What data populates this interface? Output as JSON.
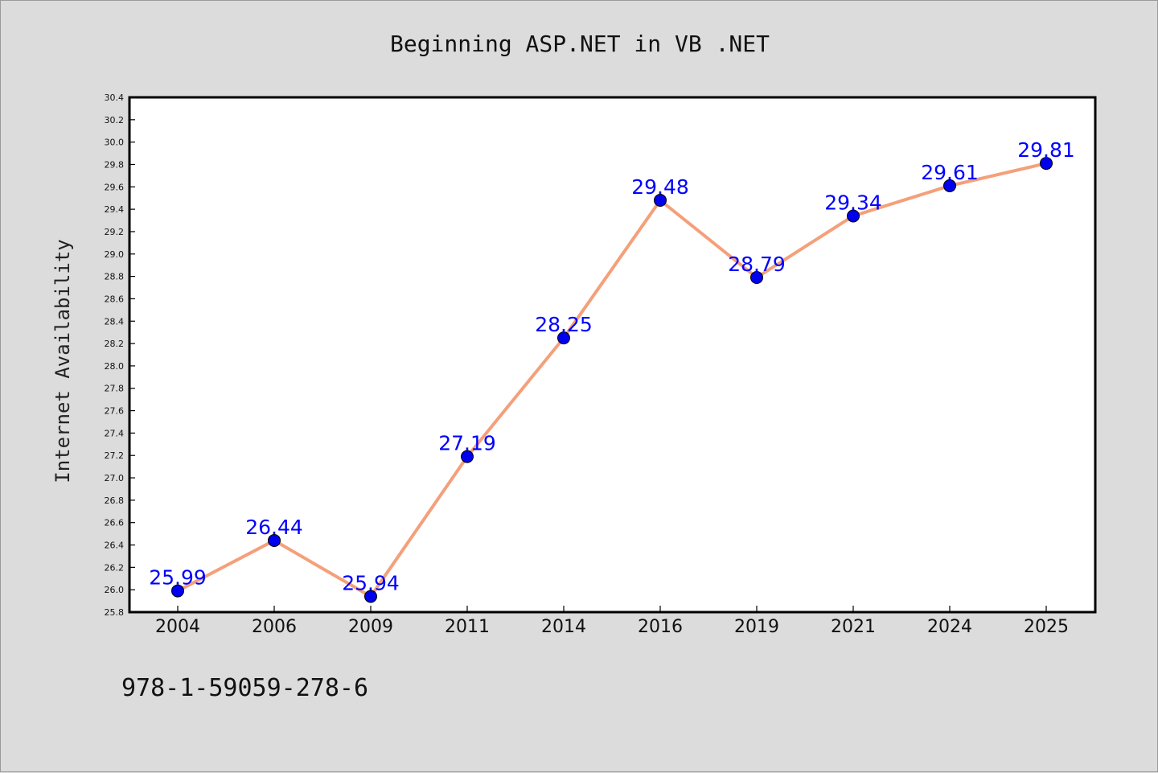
{
  "chart_data": {
    "type": "line",
    "title": "Beginning ASP.NET in VB .NET",
    "xlabel": "",
    "ylabel": "Internet Availability",
    "categories": [
      "2004",
      "2006",
      "2009",
      "2011",
      "2014",
      "2016",
      "2019",
      "2021",
      "2024",
      "2025"
    ],
    "series": [
      {
        "values": [
          25.99,
          26.44,
          25.94,
          27.19,
          28.25,
          29.48,
          28.79,
          29.34,
          29.61,
          29.81
        ],
        "labels": [
          "25.99",
          "26.44",
          "25.94",
          "27.19",
          "28.25",
          "29.48",
          "28.79",
          "29.34",
          "29.61",
          "29.81"
        ],
        "line_color": "#f4a07a",
        "marker_color": "#0000ee"
      }
    ],
    "ylim": [
      25.8,
      30.4
    ],
    "yticks": [
      "25.8",
      "26.0",
      "26.2",
      "26.4",
      "26.6",
      "26.8",
      "27.0",
      "27.2",
      "27.4",
      "27.6",
      "27.8",
      "28.0",
      "28.2",
      "28.4",
      "28.6",
      "28.8",
      "29.0",
      "29.2",
      "29.4",
      "29.6",
      "29.8",
      "30.0",
      "30.2",
      "30.4"
    ],
    "grid": false,
    "legend": "none"
  },
  "footer": {
    "isbn": "978-1-59059-278-6"
  }
}
